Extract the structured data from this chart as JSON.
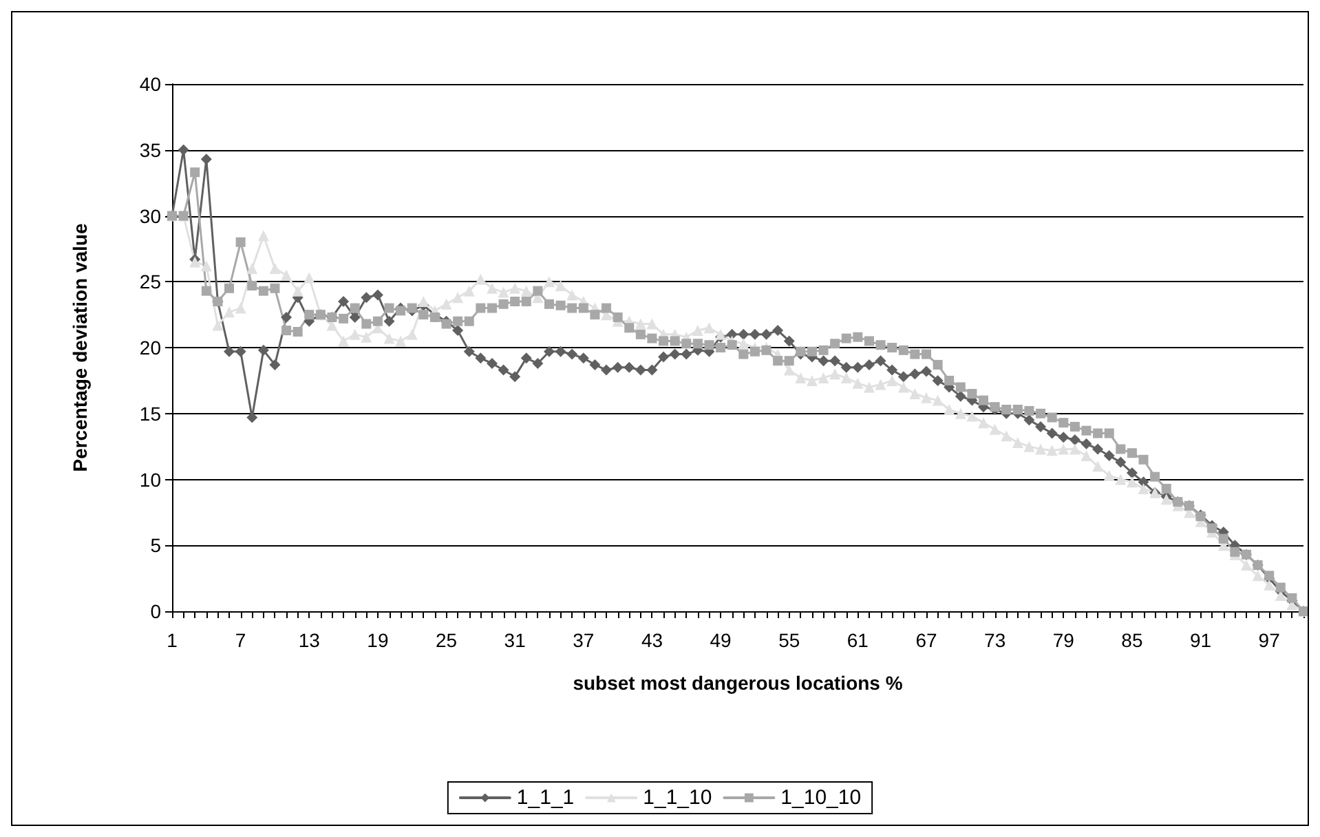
{
  "chart_data": {
    "type": "line",
    "xlabel": "subset most dangerous locations %",
    "ylabel": "Percentage deviation value",
    "categories": [
      "1",
      null,
      null,
      null,
      null,
      null,
      "7",
      null,
      null,
      null,
      null,
      null,
      "13",
      null,
      null,
      null,
      null,
      null,
      "19",
      null,
      null,
      null,
      null,
      null,
      "25",
      null,
      null,
      null,
      null,
      null,
      "31",
      null,
      null,
      null,
      null,
      null,
      "37",
      null,
      null,
      null,
      null,
      null,
      "43",
      null,
      null,
      null,
      null,
      null,
      "49",
      null,
      null,
      null,
      null,
      null,
      "55",
      null,
      null,
      null,
      null,
      null,
      "61",
      null,
      null,
      null,
      null,
      null,
      "67",
      null,
      null,
      null,
      null,
      null,
      "73",
      null,
      null,
      null,
      null,
      null,
      "79",
      null,
      null,
      null,
      null,
      null,
      "85",
      null,
      null,
      null,
      null,
      null,
      "91",
      null,
      null,
      null,
      null,
      null,
      "97",
      null,
      null,
      null
    ],
    "ylim": [
      0,
      40
    ],
    "yticks": [
      0,
      5,
      10,
      15,
      20,
      25,
      30,
      35,
      40
    ],
    "grid": "y",
    "legend": "bottom",
    "line_style": "solid",
    "series": [
      {
        "name": "1_1_1",
        "color": "#606060",
        "marker": "diamond",
        "values": [
          30,
          35,
          26.7,
          34.3,
          23.5,
          19.7,
          19.7,
          14.7,
          19.8,
          18.7,
          22.3,
          23.8,
          22,
          22.5,
          22.3,
          23.5,
          22.3,
          23.8,
          24,
          22,
          23,
          22.8,
          23.2,
          22.5,
          22,
          21.3,
          19.7,
          19.2,
          18.8,
          18.3,
          17.8,
          19.2,
          18.8,
          19.7,
          19.7,
          19.5,
          19.2,
          18.7,
          18.3,
          18.5,
          18.5,
          18.3,
          18.3,
          19.3,
          19.5,
          19.5,
          19.8,
          19.7,
          20.8,
          21,
          21,
          21,
          21,
          21.3,
          20.5,
          19.5,
          19.3,
          19,
          19,
          18.5,
          18.5,
          18.7,
          19,
          18.3,
          17.8,
          18,
          18.2,
          17.5,
          17,
          16.3,
          16,
          15.5,
          15.3,
          15,
          15,
          14.5,
          14,
          13.5,
          13.2,
          13,
          12.7,
          12.3,
          11.8,
          11.3,
          10.5,
          9.8,
          9,
          8.7,
          8.3,
          8,
          7.3,
          6.5,
          6,
          5,
          4.3,
          3.5,
          2.5,
          1.5,
          0.8,
          0
        ]
      },
      {
        "name": "1_1_10",
        "color": "#e0e0e0",
        "marker": "triangle",
        "values": [
          30,
          30,
          26.5,
          26.2,
          21.7,
          22.7,
          23,
          26,
          28.5,
          26,
          25.5,
          24.3,
          25.3,
          22.5,
          21.7,
          20.5,
          21,
          20.8,
          21.5,
          20.7,
          20.5,
          21,
          23.5,
          22.8,
          23.3,
          23.8,
          24.3,
          25.2,
          24.5,
          24.2,
          24.5,
          24.3,
          23.8,
          25,
          24.7,
          24,
          23.5,
          23,
          22.5,
          22,
          22,
          21.8,
          21.8,
          21,
          21,
          20.8,
          21.3,
          21.5,
          21,
          20.5,
          20.3,
          20,
          20,
          19.5,
          18.3,
          17.7,
          17.5,
          17.7,
          18,
          17.7,
          17.3,
          17,
          17.2,
          17.5,
          17,
          16.5,
          16.2,
          16,
          15.3,
          15,
          14.8,
          14.3,
          13.8,
          13.3,
          12.8,
          12.5,
          12.3,
          12.2,
          12.3,
          12.3,
          11.8,
          11,
          10.3,
          10,
          9.8,
          9.3,
          9,
          8.5,
          8,
          7.5,
          6.8,
          6,
          5,
          4.3,
          3.5,
          2.7,
          2,
          1.2,
          0.5,
          0
        ]
      },
      {
        "name": "1_10_10",
        "color": "#a8a8a8",
        "marker": "square",
        "values": [
          30,
          30,
          33.3,
          24.3,
          23.5,
          24.5,
          28,
          24.7,
          24.3,
          24.5,
          21.3,
          21.2,
          22.5,
          22.5,
          22.3,
          22.2,
          23,
          21.8,
          22,
          23,
          22.8,
          23,
          22.5,
          22.3,
          21.8,
          22,
          22,
          23,
          23,
          23.3,
          23.5,
          23.5,
          24.3,
          23.3,
          23.2,
          23,
          23,
          22.5,
          23,
          22.3,
          21.5,
          21,
          20.7,
          20.5,
          20.5,
          20.3,
          20.3,
          20.2,
          20,
          20.2,
          19.5,
          19.7,
          19.8,
          19,
          19,
          19.7,
          19.7,
          19.8,
          20.3,
          20.7,
          20.8,
          20.5,
          20.2,
          20,
          19.8,
          19.5,
          19.5,
          18.7,
          17.5,
          17,
          16.5,
          16,
          15.5,
          15.3,
          15.3,
          15.2,
          15,
          14.7,
          14.3,
          14,
          13.7,
          13.5,
          13.5,
          12.3,
          12,
          11.5,
          10.2,
          9.3,
          8.3,
          8,
          7.2,
          6.3,
          5.5,
          4.5,
          4.3,
          3.5,
          2.7,
          1.8,
          1,
          0
        ]
      }
    ]
  }
}
